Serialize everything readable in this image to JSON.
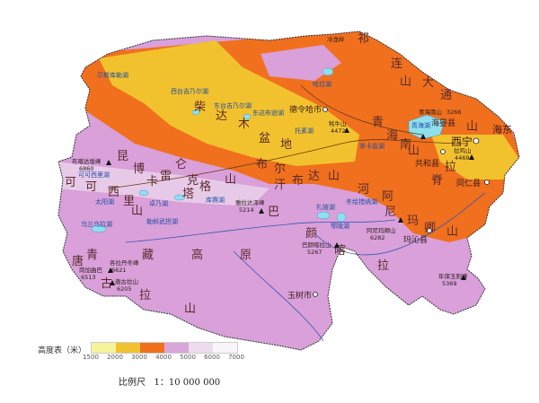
{
  "legend": {
    "title": "高度表（米）",
    "ticks": [
      "1500",
      "2000",
      "3000",
      "4000",
      "5000",
      "6000",
      "7000"
    ],
    "colors": [
      "#f6f49a",
      "#f2c22e",
      "#f0701e",
      "#d9a6d9",
      "#eddcee",
      "#f9f5f9"
    ]
  },
  "scale": {
    "label": "比例尺",
    "value": "1：10 000 000"
  },
  "colors": {
    "base": "#d9a0da",
    "water": "#8fe0ee",
    "river": "#3a55b0",
    "road": "#6b3a10"
  },
  "labels": {
    "big": [
      "柴",
      "达",
      "木",
      "盆",
      "地",
      "昆",
      "仑",
      "山",
      "布",
      "尔",
      "汗",
      "布",
      "达",
      "山",
      "可",
      "可",
      "西",
      "里",
      "山",
      "巴",
      "颜",
      "喀",
      "拉",
      "青",
      "藏",
      "高",
      "原",
      "唐",
      "古",
      "拉",
      "山",
      "祁",
      "连",
      "山",
      "大",
      "通",
      "河",
      "阿",
      "尼",
      "玛",
      "卿",
      "山",
      "青",
      "海",
      "南",
      "山",
      "拉",
      "脊",
      "山",
      "博",
      "卡",
      "雷",
      "克",
      "塔",
      "格"
    ],
    "cities": [
      "德令哈市",
      "西宁",
      "海东",
      "共和县",
      "海晏县",
      "同仁县",
      "玛沁县",
      "玉树市"
    ],
    "lakes": [
      "尕斯库勒湖",
      "西台吉乃尔湖",
      "东台吉乃尔湖",
      "东达布逊湖",
      "哈拉湖",
      "托素湖",
      "青海湖",
      "茶卡盐湖",
      "扎陵湖",
      "鄂陵湖",
      "冬给措纳湖",
      "乌兰乌拉湖",
      "太阳湖",
      "库赛湖",
      "卓乃湖",
      "勒斜武担湖",
      "可可西里湖"
    ],
    "peaks": [
      "布喀达坂峰",
      "6860",
      "牦牛山",
      "4472",
      "青海南山",
      "3266",
      "拉鸡山",
      "4469",
      "雅拉达泽峰",
      "5214",
      "阿尼玛卿山",
      "6282",
      "巴颜喀拉山",
      "5267",
      "各拉丹冬峰",
      "6621",
      "唐古拉山",
      "6205",
      "岗加曲巴",
      "6513",
      "年保玉则峰",
      "5369",
      "冷龙岭"
    ]
  }
}
